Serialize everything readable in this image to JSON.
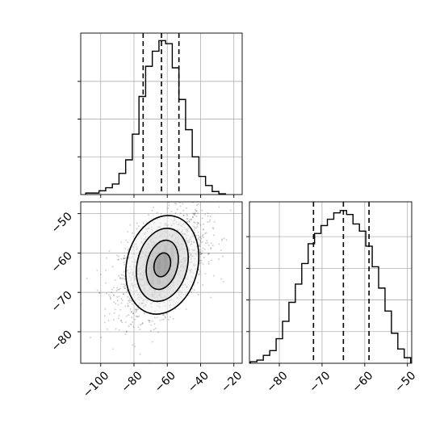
{
  "chart_data": [
    {
      "type": "histogram",
      "panel": "top-left",
      "variable": "x",
      "grid": true,
      "x_ticks": [
        -100,
        -80,
        -60,
        -40,
        -20
      ],
      "xlim": [
        -112,
        -15
      ],
      "bins": [
        {
          "x": -107.0,
          "count": 2
        },
        {
          "x": -103.0,
          "count": 2
        },
        {
          "x": -99.0,
          "count": 5
        },
        {
          "x": -95.0,
          "count": 9
        },
        {
          "x": -91.0,
          "count": 14
        },
        {
          "x": -87.0,
          "count": 28
        },
        {
          "x": -83.0,
          "count": 46
        },
        {
          "x": -79.0,
          "count": 80
        },
        {
          "x": -75.0,
          "count": 130
        },
        {
          "x": -71.0,
          "count": 170
        },
        {
          "x": -67.0,
          "count": 190
        },
        {
          "x": -63.0,
          "count": 204
        },
        {
          "x": -59.0,
          "count": 200
        },
        {
          "x": -55.0,
          "count": 168
        },
        {
          "x": -51.0,
          "count": 126
        },
        {
          "x": -47.0,
          "count": 86
        },
        {
          "x": -43.0,
          "count": 50
        },
        {
          "x": -39.0,
          "count": 24
        },
        {
          "x": -35.0,
          "count": 12
        },
        {
          "x": -31.0,
          "count": 4
        },
        {
          "x": -27.0,
          "count": 1
        }
      ],
      "ylim": [
        0,
        214
      ],
      "y_gridlines": [
        50,
        100,
        150
      ],
      "quantile_lines": [
        -74.5,
        -63.5,
        -53.0
      ]
    },
    {
      "type": "histogram",
      "panel": "bottom-right",
      "variable": "y",
      "grid": true,
      "x_ticks": [
        -80,
        -70,
        -60,
        -50
      ],
      "xlim": [
        -87,
        -49
      ],
      "bins": [
        {
          "x": -86.0,
          "count": 2
        },
        {
          "x": -84.5,
          "count": 4
        },
        {
          "x": -83.0,
          "count": 10
        },
        {
          "x": -81.5,
          "count": 16
        },
        {
          "x": -80.0,
          "count": 31
        },
        {
          "x": -78.5,
          "count": 53
        },
        {
          "x": -77.0,
          "count": 77
        },
        {
          "x": -75.5,
          "count": 100
        },
        {
          "x": -74.0,
          "count": 126
        },
        {
          "x": -72.5,
          "count": 151
        },
        {
          "x": -71.0,
          "count": 164
        },
        {
          "x": -69.5,
          "count": 174
        },
        {
          "x": -68.0,
          "count": 182
        },
        {
          "x": -66.5,
          "count": 190
        },
        {
          "x": -65.0,
          "count": 193
        },
        {
          "x": -63.5,
          "count": 188
        },
        {
          "x": -62.0,
          "count": 176
        },
        {
          "x": -60.5,
          "count": 167
        },
        {
          "x": -59.0,
          "count": 148
        },
        {
          "x": -57.5,
          "count": 122
        },
        {
          "x": -56.0,
          "count": 95
        },
        {
          "x": -54.5,
          "count": 66
        },
        {
          "x": -53.0,
          "count": 38
        },
        {
          "x": -51.5,
          "count": 18
        },
        {
          "x": -50.0,
          "count": 7
        }
      ],
      "ylim": [
        0,
        204
      ],
      "y_gridlines": [
        40,
        80,
        120,
        160
      ],
      "quantile_lines": [
        -72.0,
        -65.0,
        -59.0
      ]
    },
    {
      "type": "contour",
      "panel": "bottom-left",
      "x_variable": "x",
      "y_variable": "y",
      "grid": true,
      "xlim": [
        -112,
        -15
      ],
      "ylim": [
        -88,
        -47
      ],
      "x_ticks": [
        -100,
        -80,
        -60,
        -40,
        -20
      ],
      "y_ticks": [
        -50,
        -60,
        -70,
        -80
      ],
      "density_peak": {
        "x": -63,
        "y": -63
      },
      "scatter_sigma": {
        "x": 13,
        "y": 6.5
      },
      "correlation": 0.45,
      "scatter_points": 1800,
      "contour_levels": [
        {
          "rx": 44,
          "ry": 62,
          "angle": 14
        },
        {
          "rx": 31,
          "ry": 46,
          "angle": 14
        },
        {
          "rx": 19,
          "ry": 31,
          "angle": 14
        },
        {
          "rx": 10,
          "ry": 15,
          "angle": 14
        }
      ],
      "density_cells": [
        {
          "x": -61.0,
          "y": -61.0,
          "shade": 0.95
        },
        {
          "x": -65.0,
          "y": -63.0,
          "shade": 0.9
        },
        {
          "x": -61.0,
          "y": -63.0,
          "shade": 0.75
        },
        {
          "x": -65.0,
          "y": -61.0,
          "shade": 0.7
        },
        {
          "x": -65.0,
          "y": -65.0,
          "shade": 0.62
        },
        {
          "x": -61.0,
          "y": -65.0,
          "shade": 0.6
        },
        {
          "x": -69.0,
          "y": -65.0,
          "shade": 0.5
        },
        {
          "x": -57.0,
          "y": -61.0,
          "shade": 0.5
        },
        {
          "x": -57.0,
          "y": -59.0,
          "shade": 0.45
        },
        {
          "x": -69.0,
          "y": -67.0,
          "shade": 0.45
        },
        {
          "x": -65.0,
          "y": -67.0,
          "shade": 0.5
        },
        {
          "x": -61.0,
          "y": -59.0,
          "shade": 0.45
        },
        {
          "x": -69.0,
          "y": -63.0,
          "shade": 0.4
        }
      ]
    }
  ]
}
